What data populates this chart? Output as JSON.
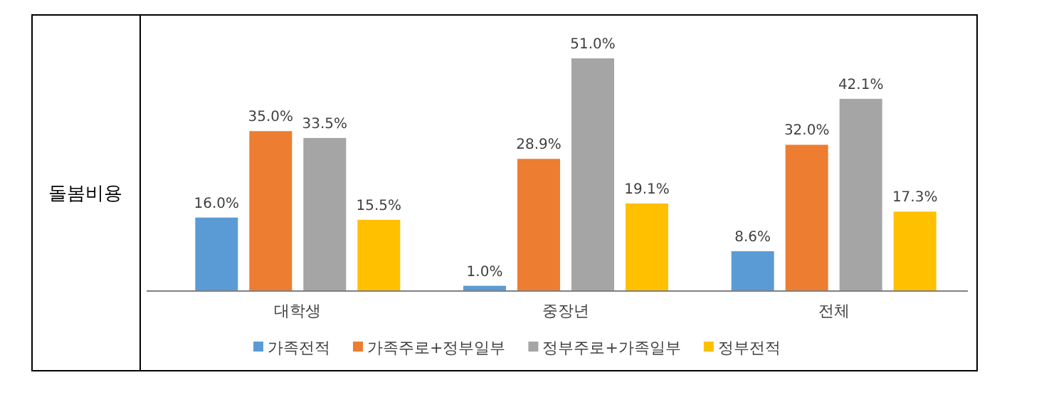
{
  "chart_data": {
    "type": "bar",
    "ylabel": "돌봄비용",
    "categories": [
      "대학생",
      "중장년",
      "전체"
    ],
    "series": [
      {
        "name": "가족전적",
        "color": "#5b9bd5",
        "values": [
          16.0,
          1.0,
          8.6
        ],
        "value_labels": [
          "16.0%",
          "1.0%",
          "8.6%"
        ]
      },
      {
        "name": "가족주로+정부일부",
        "color": "#ed7d31",
        "values": [
          35.0,
          28.9,
          32.0
        ],
        "value_labels": [
          "35.0%",
          "28.9%",
          "32.0%"
        ]
      },
      {
        "name": "정부주로+가족일부",
        "color": "#a5a5a5",
        "values": [
          33.5,
          51.0,
          42.1
        ],
        "value_labels": [
          "33.5%",
          "51.0%",
          "42.1%"
        ]
      },
      {
        "name": "정부전적",
        "color": "#ffc000",
        "values": [
          15.5,
          19.1,
          17.3
        ],
        "value_labels": [
          "15.5%",
          "19.1%",
          "17.3%"
        ]
      }
    ],
    "legend": "bottom"
  }
}
